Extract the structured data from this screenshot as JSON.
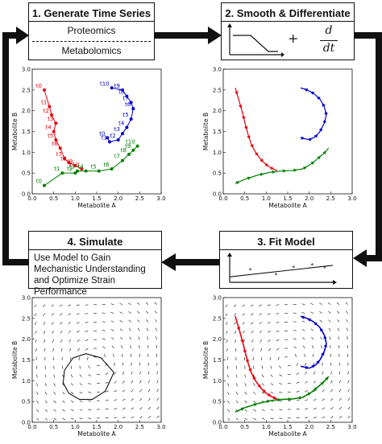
{
  "colors": {
    "red": "#e8000b",
    "blue": "#0000cc",
    "green": "#008000",
    "ink": "#111111"
  },
  "step1": {
    "title": "1. Generate Time Series",
    "row1": "Proteomics",
    "row2": "Metabolomics"
  },
  "step2": {
    "title": "2. Smooth & Differentiate",
    "plus": "+",
    "frac_num": "d",
    "frac_den": "dt"
  },
  "step3": {
    "title": "3. Fit Model",
    "marker": "*"
  },
  "step4": {
    "title": "4. Simulate",
    "body": "Use Model to Gain Mechanistic Understanding and Optimize Strain Performance"
  },
  "chart_data": [
    {
      "type": "scatter",
      "panel": "time-series",
      "xlabel": "Metabolite A",
      "ylabel": "Metabolite B",
      "xlim": [
        0.0,
        3.0
      ],
      "ylim": [
        0.0,
        3.0
      ],
      "xticks": [
        "0.0",
        "0.5",
        "1.0",
        "1.5",
        "2.0",
        "2.5",
        "3.0"
      ],
      "yticks": [
        "0.0",
        "0.5",
        "1.0",
        "1.5",
        "2.0",
        "2.5",
        "3.0"
      ],
      "series": [
        {
          "color": "red",
          "labels": [
            "t0",
            "t1",
            "t2",
            "t3",
            "t4",
            "t5",
            "t6",
            "t7",
            "t8",
            "t9",
            "t10"
          ],
          "x": [
            0.28,
            0.4,
            0.45,
            0.55,
            0.5,
            0.55,
            0.65,
            0.75,
            0.85,
            1.0,
            1.15
          ],
          "y": [
            2.5,
            2.1,
            1.9,
            1.7,
            1.5,
            1.3,
            1.1,
            0.85,
            0.75,
            0.68,
            0.6
          ]
        },
        {
          "color": "blue",
          "labels": [
            "t0",
            "t1",
            "t2",
            "t3",
            "t4",
            "t5",
            "t6",
            "t7",
            "t8",
            "t9",
            "t10"
          ],
          "x": [
            1.75,
            1.8,
            2.0,
            2.1,
            2.2,
            2.3,
            2.35,
            2.3,
            2.2,
            2.1,
            1.85
          ],
          "y": [
            1.35,
            1.25,
            1.3,
            1.45,
            1.6,
            1.8,
            2.05,
            2.2,
            2.35,
            2.5,
            2.55
          ]
        },
        {
          "color": "green",
          "labels": [
            "t0",
            "t1",
            "t2",
            "t3",
            "t4",
            "t5",
            "t6",
            "t7",
            "t8",
            "t9",
            "t10"
          ],
          "x": [
            0.28,
            0.7,
            1.0,
            1.05,
            1.25,
            1.55,
            1.85,
            2.1,
            2.25,
            2.35,
            2.45
          ],
          "y": [
            0.2,
            0.5,
            0.5,
            0.55,
            0.55,
            0.55,
            0.6,
            0.8,
            0.95,
            1.05,
            1.15
          ]
        }
      ]
    },
    {
      "type": "line",
      "panel": "smoothed-derivatives",
      "xlabel": "Metabolite A",
      "ylabel": "Metabolite B",
      "xlim": [
        0.0,
        3.0
      ],
      "ylim": [
        0.0,
        3.0
      ],
      "xticks": [
        "0.0",
        "0.5",
        "1.0",
        "1.5",
        "2.0",
        "2.5",
        "3.0"
      ],
      "yticks": [
        "0.0",
        "0.5",
        "1.0",
        "1.5",
        "2.0",
        "2.5",
        "3.0"
      ],
      "series": [
        {
          "color": "red",
          "x": [
            0.28,
            0.38,
            0.46,
            0.52,
            0.58,
            0.65,
            0.75,
            0.88,
            1.0,
            1.12,
            1.25
          ],
          "y": [
            2.55,
            2.2,
            1.9,
            1.65,
            1.42,
            1.2,
            1.0,
            0.82,
            0.7,
            0.62,
            0.56
          ]
        },
        {
          "color": "blue",
          "x": [
            1.8,
            2.0,
            2.15,
            2.25,
            2.35,
            2.4,
            2.35,
            2.25,
            2.1,
            1.95,
            1.8
          ],
          "y": [
            1.35,
            1.3,
            1.38,
            1.5,
            1.7,
            1.9,
            2.1,
            2.28,
            2.42,
            2.5,
            2.55
          ]
        },
        {
          "color": "green",
          "x": [
            0.28,
            0.5,
            0.8,
            1.1,
            1.35,
            1.6,
            1.85,
            2.05,
            2.2,
            2.35,
            2.45
          ],
          "y": [
            0.25,
            0.35,
            0.45,
            0.52,
            0.55,
            0.56,
            0.6,
            0.72,
            0.85,
            0.98,
            1.1
          ]
        }
      ]
    },
    {
      "type": "scatter",
      "panel": "fit-model",
      "points": {
        "x": [
          0.2,
          0.45,
          0.62,
          0.8,
          0.92
        ],
        "y": [
          0.42,
          0.25,
          0.52,
          0.6,
          0.5
        ]
      },
      "fit_line": {
        "x": [
          0.0,
          1.0
        ],
        "y": [
          0.2,
          0.62
        ]
      }
    },
    {
      "type": "line",
      "panel": "simulate",
      "xlabel": "Metabolite A",
      "ylabel": "Metabolite B",
      "xlim": [
        0.0,
        3.0
      ],
      "ylim": [
        0.0,
        3.0
      ],
      "xticks": [
        "0.0",
        "0.5",
        "1.0",
        "1.5",
        "2.0",
        "2.5",
        "3.0"
      ],
      "yticks": [
        "0.0",
        "0.5",
        "1.0",
        "1.5",
        "2.0",
        "2.5",
        "3.0"
      ],
      "quiver": true,
      "trajectory": {
        "x": [
          1.9,
          1.6,
          1.25,
          0.95,
          0.75,
          0.72,
          0.85,
          1.1,
          1.4,
          1.7,
          1.9
        ],
        "y": [
          1.2,
          1.55,
          1.65,
          1.55,
          1.25,
          0.95,
          0.7,
          0.55,
          0.55,
          0.75,
          1.2
        ]
      }
    },
    {
      "type": "line",
      "panel": "fit-overlay",
      "xlabel": "Metabolite A",
      "ylabel": "Metabolite B",
      "xlim": [
        0.0,
        3.0
      ],
      "ylim": [
        0.0,
        3.0
      ],
      "xticks": [
        "0.0",
        "0.5",
        "1.0",
        "1.5",
        "2.0",
        "2.5",
        "3.0"
      ],
      "yticks": [
        "0.0",
        "0.5",
        "1.0",
        "1.5",
        "2.0",
        "2.5",
        "3.0"
      ],
      "quiver": true
    }
  ]
}
